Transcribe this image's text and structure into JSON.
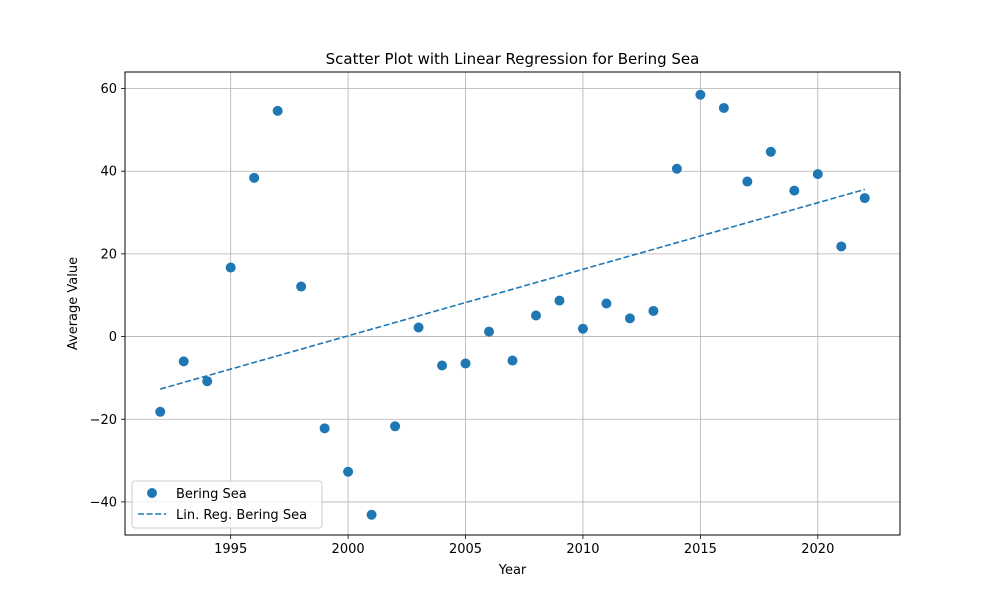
{
  "chart_data": {
    "type": "scatter",
    "title": "Scatter Plot with Linear Regression for Bering Sea",
    "xlabel": "Year",
    "ylabel": "Average Value",
    "xlim": [
      1990.5,
      2023.5
    ],
    "ylim": [
      -48,
      64
    ],
    "xticks": [
      1995,
      2000,
      2005,
      2010,
      2015,
      2020
    ],
    "yticks": [
      -40,
      -20,
      0,
      20,
      40,
      60
    ],
    "ytick_labels": [
      "−40",
      "−20",
      "0",
      "20",
      "40",
      "60"
    ],
    "grid": true,
    "legend_position": "lower-left",
    "series": [
      {
        "name": "Bering Sea",
        "kind": "scatter",
        "color": "#1f77b4",
        "x": [
          1992,
          1993,
          1994,
          1995,
          1996,
          1997,
          1998,
          1999,
          2000,
          2001,
          2002,
          2003,
          2004,
          2005,
          2006,
          2007,
          2008,
          2009,
          2010,
          2011,
          2012,
          2013,
          2014,
          2015,
          2016,
          2017,
          2018,
          2019,
          2020,
          2021,
          2022
        ],
        "y": [
          -18.2,
          -6.0,
          -10.8,
          16.7,
          38.4,
          54.6,
          12.1,
          -22.2,
          -32.7,
          -43.1,
          -21.7,
          2.2,
          -7.0,
          -6.5,
          1.2,
          -5.8,
          5.1,
          8.7,
          1.9,
          8.0,
          4.4,
          6.2,
          40.6,
          58.5,
          55.3,
          37.5,
          44.7,
          35.3,
          39.3,
          21.8,
          33.5
        ]
      },
      {
        "name": "Lin. Reg. Bering Sea",
        "kind": "line",
        "style": "dashed",
        "color": "#1f77b4",
        "x": [
          1992,
          2022
        ],
        "y": [
          -12.7,
          35.6
        ]
      }
    ]
  }
}
